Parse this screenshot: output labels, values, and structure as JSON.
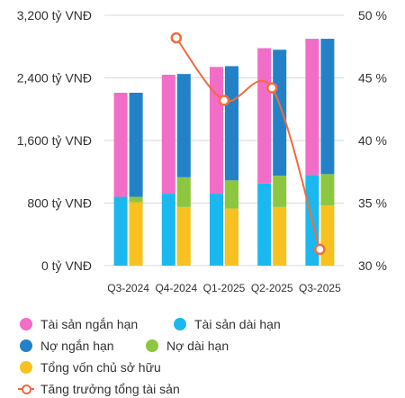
{
  "chart_data": {
    "type": "bar",
    "categories": [
      "Q3-2024",
      "Q4-2024",
      "Q1-2025",
      "Q2-2025",
      "Q3-2025"
    ],
    "left_axis": {
      "ticks": [
        0,
        800,
        1600,
        2400,
        3200
      ],
      "tick_labels": [
        "0 tỷ VNĐ",
        "800 tỷ VNĐ",
        "1,600 tỷ VNĐ",
        "2,400 tỷ VNĐ",
        "3,200 tỷ VNĐ"
      ],
      "ylim": [
        0,
        3200
      ]
    },
    "right_axis": {
      "ticks": [
        30,
        35,
        40,
        45,
        50
      ],
      "tick_labels": [
        "30 %",
        "35 %",
        "40 %",
        "45 %",
        "50 %"
      ],
      "ylim": [
        30,
        50
      ]
    },
    "grid": true,
    "legend_position": "bottom",
    "stacks": [
      {
        "stack": "assets",
        "series": [
          {
            "name": "Tài sản dài hạn",
            "color": "#1AB8EE",
            "values": [
              880,
              920,
              920,
              1050,
              1160
            ]
          },
          {
            "name": "Tài sản ngắn hạn",
            "color": "#F26DC7",
            "values": [
              1330,
              1520,
              1620,
              1730,
              1740
            ]
          }
        ]
      },
      {
        "stack": "capital",
        "series": [
          {
            "name": "Tổng vốn chủ sở hữu",
            "color": "#F7C21F",
            "values": [
              810,
              750,
              730,
              750,
              770
            ]
          },
          {
            "name": "Nợ dài hạn",
            "color": "#8DC63F",
            "values": [
              70,
              380,
              360,
              400,
              400
            ]
          },
          {
            "name": "Nợ ngắn hạn",
            "color": "#2382C7",
            "values": [
              1330,
              1320,
              1460,
              1610,
              1730
            ]
          }
        ]
      }
    ],
    "line": {
      "name": "Tăng trưởng tổng tài sản",
      "color": "#F26C3E",
      "axis": "right",
      "values": [
        null,
        48.2,
        43.2,
        44.2,
        31.3
      ]
    }
  },
  "legend": [
    {
      "label": "Tài sản ngắn hạn",
      "color": "#F26DC7",
      "kind": "dot"
    },
    {
      "label": "Tài sản dài hạn",
      "color": "#1AB8EE",
      "kind": "dot"
    },
    {
      "label": "Nợ ngắn hạn",
      "color": "#2382C7",
      "kind": "dot"
    },
    {
      "label": "Nợ dài hạn",
      "color": "#8DC63F",
      "kind": "dot"
    },
    {
      "label": "Tổng vốn chủ sở hữu",
      "color": "#F7C21F",
      "kind": "dot"
    },
    {
      "label": "Tăng trưởng tổng tài sản",
      "color": "#F26C3E",
      "kind": "line"
    }
  ]
}
